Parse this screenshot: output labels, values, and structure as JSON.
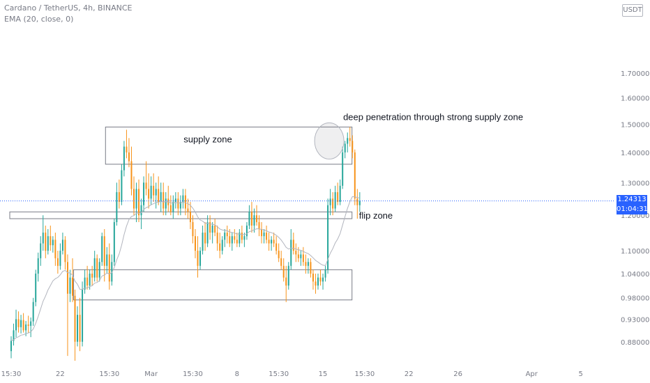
{
  "header": {
    "symbol_line": "Cardano / TetherUS, 4h, BINANCE",
    "indicator_line": "EMA (20, close, 0)",
    "currency_label": "USDT"
  },
  "price_tag": {
    "price": "1.24313",
    "countdown": "01:04:31"
  },
  "colors": {
    "up": "#26a69a",
    "down": "#f7931a",
    "ema": "#b2b5be",
    "zone": "#787b86",
    "price_line": "#2962ff",
    "axis_text": "#787b86"
  },
  "chart_data": {
    "type": "candlestick",
    "y_axis": {
      "scale": "log",
      "range": [
        0.84,
        2.0
      ],
      "ticks": [
        "1.70000",
        "1.60000",
        "1.50000",
        "1.40000",
        "1.30000",
        "1.20000",
        "1.10000",
        "1.04000",
        "0.98000",
        "0.93000",
        "0.88000"
      ]
    },
    "x_axis": {
      "ticks": [
        {
          "label": "15:30",
          "bar": 0
        },
        {
          "label": "22",
          "bar": 20
        },
        {
          "label": "15:30",
          "bar": 40
        },
        {
          "label": "Mar",
          "bar": 57
        },
        {
          "label": "15:30",
          "bar": 74
        },
        {
          "label": "8",
          "bar": 92
        },
        {
          "label": "15:30",
          "bar": 109
        },
        {
          "label": "15",
          "bar": 127
        },
        {
          "label": "15:30",
          "bar": 144
        },
        {
          "label": "22",
          "bar": 162
        },
        {
          "label": "26",
          "bar": 182
        },
        {
          "label": "Apr",
          "bar": 212
        },
        {
          "label": "5",
          "bar": 232
        }
      ]
    },
    "bars": [
      {
        "o": 0.86,
        "h": 0.892,
        "l": 0.845,
        "c": 0.882
      },
      {
        "o": 0.882,
        "h": 0.92,
        "l": 0.872,
        "c": 0.905
      },
      {
        "o": 0.905,
        "h": 0.952,
        "l": 0.89,
        "c": 0.93
      },
      {
        "o": 0.93,
        "h": 0.948,
        "l": 0.9,
        "c": 0.912
      },
      {
        "o": 0.912,
        "h": 0.94,
        "l": 0.898,
        "c": 0.928
      },
      {
        "o": 0.928,
        "h": 0.944,
        "l": 0.9,
        "c": 0.905
      },
      {
        "o": 0.905,
        "h": 0.926,
        "l": 0.892,
        "c": 0.918
      },
      {
        "o": 0.918,
        "h": 0.938,
        "l": 0.9,
        "c": 0.915
      },
      {
        "o": 0.915,
        "h": 0.934,
        "l": 0.89,
        "c": 0.925
      },
      {
        "o": 0.925,
        "h": 0.98,
        "l": 0.915,
        "c": 0.97
      },
      {
        "o": 0.97,
        "h": 1.05,
        "l": 0.96,
        "c": 1.04
      },
      {
        "o": 1.04,
        "h": 1.095,
        "l": 1.02,
        "c": 1.08
      },
      {
        "o": 1.08,
        "h": 1.14,
        "l": 1.06,
        "c": 1.12
      },
      {
        "o": 1.12,
        "h": 1.2,
        "l": 1.1,
        "c": 1.15
      },
      {
        "o": 1.15,
        "h": 1.17,
        "l": 1.08,
        "c": 1.1
      },
      {
        "o": 1.1,
        "h": 1.16,
        "l": 1.09,
        "c": 1.14
      },
      {
        "o": 1.14,
        "h": 1.17,
        "l": 1.1,
        "c": 1.115
      },
      {
        "o": 1.115,
        "h": 1.14,
        "l": 1.095,
        "c": 1.13
      },
      {
        "o": 1.13,
        "h": 1.15,
        "l": 1.06,
        "c": 1.08
      },
      {
        "o": 1.08,
        "h": 1.1,
        "l": 1.04,
        "c": 1.06
      },
      {
        "o": 1.06,
        "h": 1.12,
        "l": 1.05,
        "c": 1.1
      },
      {
        "o": 1.1,
        "h": 1.15,
        "l": 1.09,
        "c": 1.13
      },
      {
        "o": 1.13,
        "h": 1.14,
        "l": 1.05,
        "c": 1.07
      },
      {
        "o": 1.07,
        "h": 1.09,
        "l": 0.85,
        "c": 0.99
      },
      {
        "o": 0.99,
        "h": 1.05,
        "l": 0.97,
        "c": 1.03
      },
      {
        "o": 1.03,
        "h": 1.08,
        "l": 0.97,
        "c": 0.985
      },
      {
        "o": 0.985,
        "h": 1.0,
        "l": 0.84,
        "c": 0.88
      },
      {
        "o": 0.88,
        "h": 0.96,
        "l": 0.87,
        "c": 0.94
      },
      {
        "o": 0.94,
        "h": 0.98,
        "l": 0.86,
        "c": 0.88
      },
      {
        "o": 0.88,
        "h": 1.02,
        "l": 0.87,
        "c": 1.0
      },
      {
        "o": 1.0,
        "h": 1.05,
        "l": 0.99,
        "c": 1.03
      },
      {
        "o": 1.03,
        "h": 1.06,
        "l": 1.0,
        "c": 1.01
      },
      {
        "o": 1.01,
        "h": 1.05,
        "l": 1.0,
        "c": 1.04
      },
      {
        "o": 1.04,
        "h": 1.06,
        "l": 1.01,
        "c": 1.03
      },
      {
        "o": 1.03,
        "h": 1.1,
        "l": 1.02,
        "c": 1.08
      },
      {
        "o": 1.08,
        "h": 1.09,
        "l": 1.02,
        "c": 1.03
      },
      {
        "o": 1.03,
        "h": 1.08,
        "l": 1.02,
        "c": 1.07
      },
      {
        "o": 1.07,
        "h": 1.15,
        "l": 1.06,
        "c": 1.14
      },
      {
        "o": 1.14,
        "h": 1.16,
        "l": 1.02,
        "c": 1.06
      },
      {
        "o": 1.06,
        "h": 1.11,
        "l": 1.04,
        "c": 1.09
      },
      {
        "o": 1.09,
        "h": 1.12,
        "l": 1.0,
        "c": 1.02
      },
      {
        "o": 1.02,
        "h": 1.09,
        "l": 1.01,
        "c": 1.07
      },
      {
        "o": 1.07,
        "h": 1.19,
        "l": 1.06,
        "c": 1.18
      },
      {
        "o": 1.18,
        "h": 1.3,
        "l": 1.17,
        "c": 1.27
      },
      {
        "o": 1.27,
        "h": 1.31,
        "l": 1.22,
        "c": 1.24
      },
      {
        "o": 1.24,
        "h": 1.36,
        "l": 1.23,
        "c": 1.34
      },
      {
        "o": 1.34,
        "h": 1.44,
        "l": 1.32,
        "c": 1.42
      },
      {
        "o": 1.42,
        "h": 1.48,
        "l": 1.38,
        "c": 1.4
      },
      {
        "o": 1.4,
        "h": 1.45,
        "l": 1.35,
        "c": 1.37
      },
      {
        "o": 1.37,
        "h": 1.42,
        "l": 1.26,
        "c": 1.28
      },
      {
        "o": 1.28,
        "h": 1.32,
        "l": 1.2,
        "c": 1.22
      },
      {
        "o": 1.22,
        "h": 1.3,
        "l": 1.18,
        "c": 1.28
      },
      {
        "o": 1.28,
        "h": 1.31,
        "l": 1.18,
        "c": 1.2
      },
      {
        "o": 1.2,
        "h": 1.25,
        "l": 1.16,
        "c": 1.23
      },
      {
        "o": 1.23,
        "h": 1.32,
        "l": 1.21,
        "c": 1.3
      },
      {
        "o": 1.3,
        "h": 1.37,
        "l": 1.26,
        "c": 1.28
      },
      {
        "o": 1.28,
        "h": 1.33,
        "l": 1.22,
        "c": 1.25
      },
      {
        "o": 1.25,
        "h": 1.32,
        "l": 1.23,
        "c": 1.29
      },
      {
        "o": 1.29,
        "h": 1.33,
        "l": 1.24,
        "c": 1.26
      },
      {
        "o": 1.26,
        "h": 1.3,
        "l": 1.22,
        "c": 1.28
      },
      {
        "o": 1.28,
        "h": 1.32,
        "l": 1.23,
        "c": 1.24
      },
      {
        "o": 1.24,
        "h": 1.3,
        "l": 1.21,
        "c": 1.27
      },
      {
        "o": 1.27,
        "h": 1.3,
        "l": 1.2,
        "c": 1.22
      },
      {
        "o": 1.22,
        "h": 1.27,
        "l": 1.2,
        "c": 1.25
      },
      {
        "o": 1.25,
        "h": 1.29,
        "l": 1.21,
        "c": 1.23
      },
      {
        "o": 1.23,
        "h": 1.26,
        "l": 1.2,
        "c": 1.21
      },
      {
        "o": 1.21,
        "h": 1.26,
        "l": 1.19,
        "c": 1.24
      },
      {
        "o": 1.24,
        "h": 1.27,
        "l": 1.22,
        "c": 1.25
      },
      {
        "o": 1.25,
        "h": 1.27,
        "l": 1.2,
        "c": 1.22
      },
      {
        "o": 1.22,
        "h": 1.26,
        "l": 1.2,
        "c": 1.24
      },
      {
        "o": 1.24,
        "h": 1.28,
        "l": 1.22,
        "c": 1.26
      },
      {
        "o": 1.26,
        "h": 1.28,
        "l": 1.2,
        "c": 1.22
      },
      {
        "o": 1.22,
        "h": 1.25,
        "l": 1.19,
        "c": 1.21
      },
      {
        "o": 1.21,
        "h": 1.24,
        "l": 1.16,
        "c": 1.18
      },
      {
        "o": 1.18,
        "h": 1.2,
        "l": 1.12,
        "c": 1.14
      },
      {
        "o": 1.14,
        "h": 1.16,
        "l": 1.08,
        "c": 1.1
      },
      {
        "o": 1.1,
        "h": 1.14,
        "l": 1.03,
        "c": 1.06
      },
      {
        "o": 1.06,
        "h": 1.11,
        "l": 1.05,
        "c": 1.1
      },
      {
        "o": 1.1,
        "h": 1.17,
        "l": 1.09,
        "c": 1.15
      },
      {
        "o": 1.15,
        "h": 1.18,
        "l": 1.1,
        "c": 1.12
      },
      {
        "o": 1.12,
        "h": 1.2,
        "l": 1.11,
        "c": 1.18
      },
      {
        "o": 1.18,
        "h": 1.2,
        "l": 1.13,
        "c": 1.15
      },
      {
        "o": 1.15,
        "h": 1.18,
        "l": 1.12,
        "c": 1.17
      },
      {
        "o": 1.17,
        "h": 1.19,
        "l": 1.14,
        "c": 1.15
      },
      {
        "o": 1.15,
        "h": 1.17,
        "l": 1.1,
        "c": 1.12
      },
      {
        "o": 1.12,
        "h": 1.15,
        "l": 1.08,
        "c": 1.1
      },
      {
        "o": 1.1,
        "h": 1.14,
        "l": 1.09,
        "c": 1.13
      },
      {
        "o": 1.13,
        "h": 1.16,
        "l": 1.11,
        "c": 1.15
      },
      {
        "o": 1.15,
        "h": 1.17,
        "l": 1.12,
        "c": 1.14
      },
      {
        "o": 1.14,
        "h": 1.16,
        "l": 1.11,
        "c": 1.12
      },
      {
        "o": 1.12,
        "h": 1.15,
        "l": 1.1,
        "c": 1.14
      },
      {
        "o": 1.14,
        "h": 1.16,
        "l": 1.12,
        "c": 1.13
      },
      {
        "o": 1.13,
        "h": 1.15,
        "l": 1.11,
        "c": 1.12
      },
      {
        "o": 1.12,
        "h": 1.16,
        "l": 1.11,
        "c": 1.15
      },
      {
        "o": 1.15,
        "h": 1.17,
        "l": 1.12,
        "c": 1.13
      },
      {
        "o": 1.13,
        "h": 1.15,
        "l": 1.11,
        "c": 1.14
      },
      {
        "o": 1.14,
        "h": 1.18,
        "l": 1.13,
        "c": 1.17
      },
      {
        "o": 1.17,
        "h": 1.23,
        "l": 1.16,
        "c": 1.21
      },
      {
        "o": 1.21,
        "h": 1.24,
        "l": 1.15,
        "c": 1.17
      },
      {
        "o": 1.17,
        "h": 1.22,
        "l": 1.15,
        "c": 1.2
      },
      {
        "o": 1.2,
        "h": 1.23,
        "l": 1.17,
        "c": 1.18
      },
      {
        "o": 1.18,
        "h": 1.2,
        "l": 1.14,
        "c": 1.16
      },
      {
        "o": 1.16,
        "h": 1.18,
        "l": 1.12,
        "c": 1.14
      },
      {
        "o": 1.14,
        "h": 1.16,
        "l": 1.12,
        "c": 1.15
      },
      {
        "o": 1.15,
        "h": 1.17,
        "l": 1.12,
        "c": 1.13
      },
      {
        "o": 1.13,
        "h": 1.15,
        "l": 1.1,
        "c": 1.12
      },
      {
        "o": 1.12,
        "h": 1.14,
        "l": 1.1,
        "c": 1.13
      },
      {
        "o": 1.13,
        "h": 1.15,
        "l": 1.11,
        "c": 1.12
      },
      {
        "o": 1.12,
        "h": 1.14,
        "l": 1.09,
        "c": 1.1
      },
      {
        "o": 1.1,
        "h": 1.12,
        "l": 1.07,
        "c": 1.08
      },
      {
        "o": 1.08,
        "h": 1.1,
        "l": 1.05,
        "c": 1.06
      },
      {
        "o": 1.06,
        "h": 1.08,
        "l": 1.02,
        "c": 1.03
      },
      {
        "o": 1.03,
        "h": 1.06,
        "l": 0.97,
        "c": 1.01
      },
      {
        "o": 1.01,
        "h": 1.07,
        "l": 1.0,
        "c": 1.06
      },
      {
        "o": 1.06,
        "h": 1.16,
        "l": 1.05,
        "c": 1.13
      },
      {
        "o": 1.13,
        "h": 1.15,
        "l": 1.09,
        "c": 1.1
      },
      {
        "o": 1.1,
        "h": 1.12,
        "l": 1.07,
        "c": 1.09
      },
      {
        "o": 1.09,
        "h": 1.11,
        "l": 1.07,
        "c": 1.08
      },
      {
        "o": 1.08,
        "h": 1.1,
        "l": 1.06,
        "c": 1.09
      },
      {
        "o": 1.09,
        "h": 1.11,
        "l": 1.06,
        "c": 1.07
      },
      {
        "o": 1.07,
        "h": 1.09,
        "l": 1.04,
        "c": 1.06
      },
      {
        "o": 1.06,
        "h": 1.08,
        "l": 1.04,
        "c": 1.07
      },
      {
        "o": 1.07,
        "h": 1.08,
        "l": 1.03,
        "c": 1.04
      },
      {
        "o": 1.04,
        "h": 1.05,
        "l": 1.0,
        "c": 1.02
      },
      {
        "o": 1.02,
        "h": 1.04,
        "l": 0.99,
        "c": 1.01
      },
      {
        "o": 1.01,
        "h": 1.04,
        "l": 1.0,
        "c": 1.03
      },
      {
        "o": 1.03,
        "h": 1.05,
        "l": 1.01,
        "c": 1.02
      },
      {
        "o": 1.02,
        "h": 1.04,
        "l": 1.0,
        "c": 1.03
      },
      {
        "o": 1.03,
        "h": 1.06,
        "l": 1.02,
        "c": 1.05
      },
      {
        "o": 1.05,
        "h": 1.25,
        "l": 1.04,
        "c": 1.23
      },
      {
        "o": 1.23,
        "h": 1.28,
        "l": 1.2,
        "c": 1.25
      },
      {
        "o": 1.25,
        "h": 1.27,
        "l": 1.2,
        "c": 1.22
      },
      {
        "o": 1.22,
        "h": 1.29,
        "l": 1.21,
        "c": 1.27
      },
      {
        "o": 1.27,
        "h": 1.3,
        "l": 1.23,
        "c": 1.24
      },
      {
        "o": 1.24,
        "h": 1.31,
        "l": 1.23,
        "c": 1.29
      },
      {
        "o": 1.29,
        "h": 1.42,
        "l": 1.28,
        "c": 1.4
      },
      {
        "o": 1.4,
        "h": 1.44,
        "l": 1.38,
        "c": 1.43
      },
      {
        "o": 1.43,
        "h": 1.47,
        "l": 1.4,
        "c": 1.45
      },
      {
        "o": 1.45,
        "h": 1.49,
        "l": 1.42,
        "c": 1.44
      },
      {
        "o": 1.44,
        "h": 1.46,
        "l": 1.38,
        "c": 1.4
      },
      {
        "o": 1.4,
        "h": 1.41,
        "l": 1.23,
        "c": 1.25
      },
      {
        "o": 1.25,
        "h": 1.28,
        "l": 1.19,
        "c": 1.23
      },
      {
        "o": 1.23,
        "h": 1.27,
        "l": 1.21,
        "c": 1.243
      }
    ],
    "ema_label": "EMA (20, close, 0)",
    "zones": [
      {
        "label": "supply zone",
        "bar_start": 39,
        "bar_end": 136,
        "price_top": 1.49,
        "price_bottom": 1.36
      },
      {
        "label": "flip zone",
        "bar_start": 0,
        "bar_end": 136,
        "price_top": 1.21,
        "price_bottom": 1.19
      },
      {
        "label": "",
        "bar_start": 26,
        "bar_end": 136,
        "price_top": 1.05,
        "price_bottom": 0.975
      }
    ],
    "annotations": [
      {
        "text": "deep penetration through strong supply zone",
        "bar": 129,
        "price": 1.44,
        "shape": "ellipse"
      }
    ],
    "current_price": 1.24313
  }
}
